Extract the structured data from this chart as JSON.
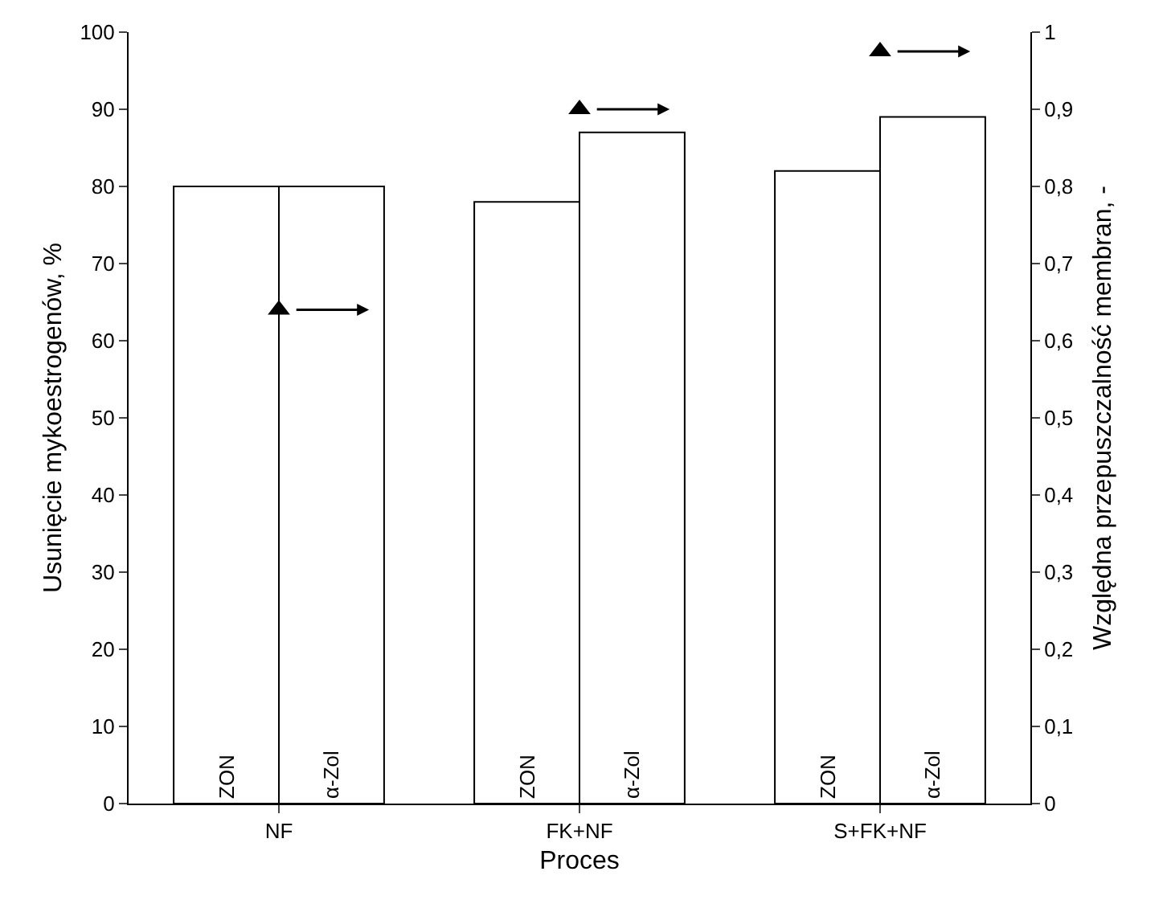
{
  "chart_data": {
    "type": "bar",
    "xlabel": "Proces",
    "ylabel": "Usunięcie mykoestrogenów, %",
    "y2label": "Względna przepuszczalność membran, -",
    "categories": [
      "NF",
      "FK+NF",
      "S+FK+NF"
    ],
    "series": [
      {
        "name": "ZON",
        "color": "#ffffff",
        "values": [
          80,
          78,
          82
        ]
      },
      {
        "name": "α-Zol",
        "color": "#ffffff",
        "values": [
          80,
          87,
          89
        ]
      },
      {
        "type": "scatter",
        "axis": "y2",
        "marker": "triangle",
        "color": "#000000",
        "values": [
          0.64,
          0.9,
          0.975
        ]
      }
    ],
    "ylim": [
      0,
      100
    ],
    "yticks": [
      0,
      10,
      20,
      30,
      40,
      50,
      60,
      70,
      80,
      90,
      100
    ],
    "y2lim": [
      0,
      1
    ],
    "y2ticks": [
      0,
      {
        "value": 0.1,
        "label": "0,1"
      },
      {
        "value": 0.2,
        "label": "0,2"
      },
      {
        "value": 0.3,
        "label": "0,3"
      },
      {
        "value": 0.4,
        "label": "0,4"
      },
      {
        "value": 0.5,
        "label": "0,5"
      },
      {
        "value": 0.6,
        "label": "0,6"
      },
      {
        "value": 0.7,
        "label": "0,7"
      },
      {
        "value": 0.8,
        "label": "0,8"
      },
      {
        "value": 0.9,
        "label": "0,9"
      },
      1
    ],
    "grid": false,
    "legend": false
  }
}
